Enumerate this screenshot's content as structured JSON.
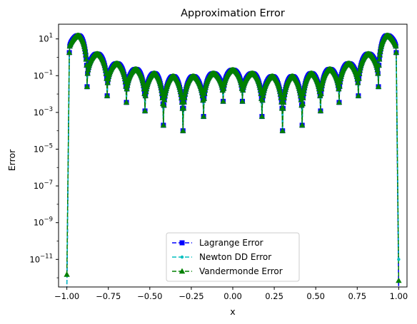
{
  "chart_data": {
    "type": "line",
    "title": "Approximation Error",
    "xlabel": "x",
    "ylabel": "Error",
    "yscale": "log",
    "xlim": [
      -1.05,
      1.05
    ],
    "ylim_exponent": [
      -12.5,
      1.8
    ],
    "x_ticks": [
      {
        "value": -1.0,
        "label": "−1.00"
      },
      {
        "value": -0.75,
        "label": "−0.75"
      },
      {
        "value": -0.5,
        "label": "−0.50"
      },
      {
        "value": -0.25,
        "label": "−0.25"
      },
      {
        "value": 0.0,
        "label": "0.00"
      },
      {
        "value": 0.25,
        "label": "0.25"
      },
      {
        "value": 0.5,
        "label": "0.50"
      },
      {
        "value": 0.75,
        "label": "0.75"
      },
      {
        "value": 1.0,
        "label": "1.00"
      }
    ],
    "y_ticks": [
      {
        "exp": 1,
        "base": "10",
        "sup": "1"
      },
      {
        "exp": -1,
        "base": "10",
        "sup": "−1"
      },
      {
        "exp": -3,
        "base": "10",
        "sup": "−3"
      },
      {
        "exp": -5,
        "base": "10",
        "sup": "−5"
      },
      {
        "exp": -7,
        "base": "10",
        "sup": "−7"
      },
      {
        "exp": -9,
        "base": "10",
        "sup": "−9"
      },
      {
        "exp": -11,
        "base": "10",
        "sup": "−11"
      }
    ],
    "grid": false,
    "legend_position": "lower-center",
    "error_minima": [
      {
        "x": -0.878,
        "y": 0.025
      },
      {
        "x": -0.757,
        "y": 0.008
      },
      {
        "x": -0.641,
        "y": 0.0035
      },
      {
        "x": -0.529,
        "y": 0.0012
      },
      {
        "x": -0.418,
        "y": 0.0002
      },
      {
        "x": -0.3,
        "y": 0.0001
      },
      {
        "x": -0.176,
        "y": 0.0006
      },
      {
        "x": -0.058,
        "y": 0.004
      },
      {
        "x": 0.058,
        "y": 0.004
      },
      {
        "x": 0.176,
        "y": 0.0006
      },
      {
        "x": 0.3,
        "y": 0.0001
      },
      {
        "x": 0.418,
        "y": 0.0002
      },
      {
        "x": 0.529,
        "y": 0.0012
      },
      {
        "x": 0.641,
        "y": 0.0035
      },
      {
        "x": 0.757,
        "y": 0.008
      },
      {
        "x": 0.878,
        "y": 0.025
      }
    ],
    "error_peaks": [
      {
        "x": -0.96,
        "y": 15
      },
      {
        "x": -0.82,
        "y": 1.5
      },
      {
        "x": -0.7,
        "y": 0.45
      },
      {
        "x": -0.585,
        "y": 0.22
      },
      {
        "x": -0.475,
        "y": 0.13
      },
      {
        "x": -0.36,
        "y": 0.09
      },
      {
        "x": -0.238,
        "y": 0.09
      },
      {
        "x": -0.117,
        "y": 0.13
      },
      {
        "x": 0.0,
        "y": 0.2
      },
      {
        "x": 0.117,
        "y": 0.13
      },
      {
        "x": 0.238,
        "y": 0.09
      },
      {
        "x": 0.36,
        "y": 0.09
      },
      {
        "x": 0.475,
        "y": 0.13
      },
      {
        "x": 0.585,
        "y": 0.22
      },
      {
        "x": 0.7,
        "y": 0.45
      },
      {
        "x": 0.82,
        "y": 1.5
      },
      {
        "x": 0.96,
        "y": 15
      }
    ],
    "endpoints": {
      "left": {
        "x": -1.0,
        "lagrange": 2e-13,
        "newton": 2e-13,
        "vandermonde": 1.5e-12
      },
      "right": {
        "x": 1.0,
        "lagrange": 2e-13,
        "newton": 1e-11,
        "vandermonde": 7e-13
      },
      "first_inner": 1.8,
      "last_inner": 1.8
    },
    "series": [
      {
        "name": "Lagrange Error",
        "color": "#0000ff",
        "marker": "square",
        "linestyle": "dashed"
      },
      {
        "name": "Newton DD Error",
        "color": "#00bfbf",
        "marker": "point",
        "linestyle": "dashed"
      },
      {
        "name": "Vandermonde Error",
        "color": "#008000",
        "marker": "triangle",
        "linestyle": "dashed"
      }
    ]
  }
}
